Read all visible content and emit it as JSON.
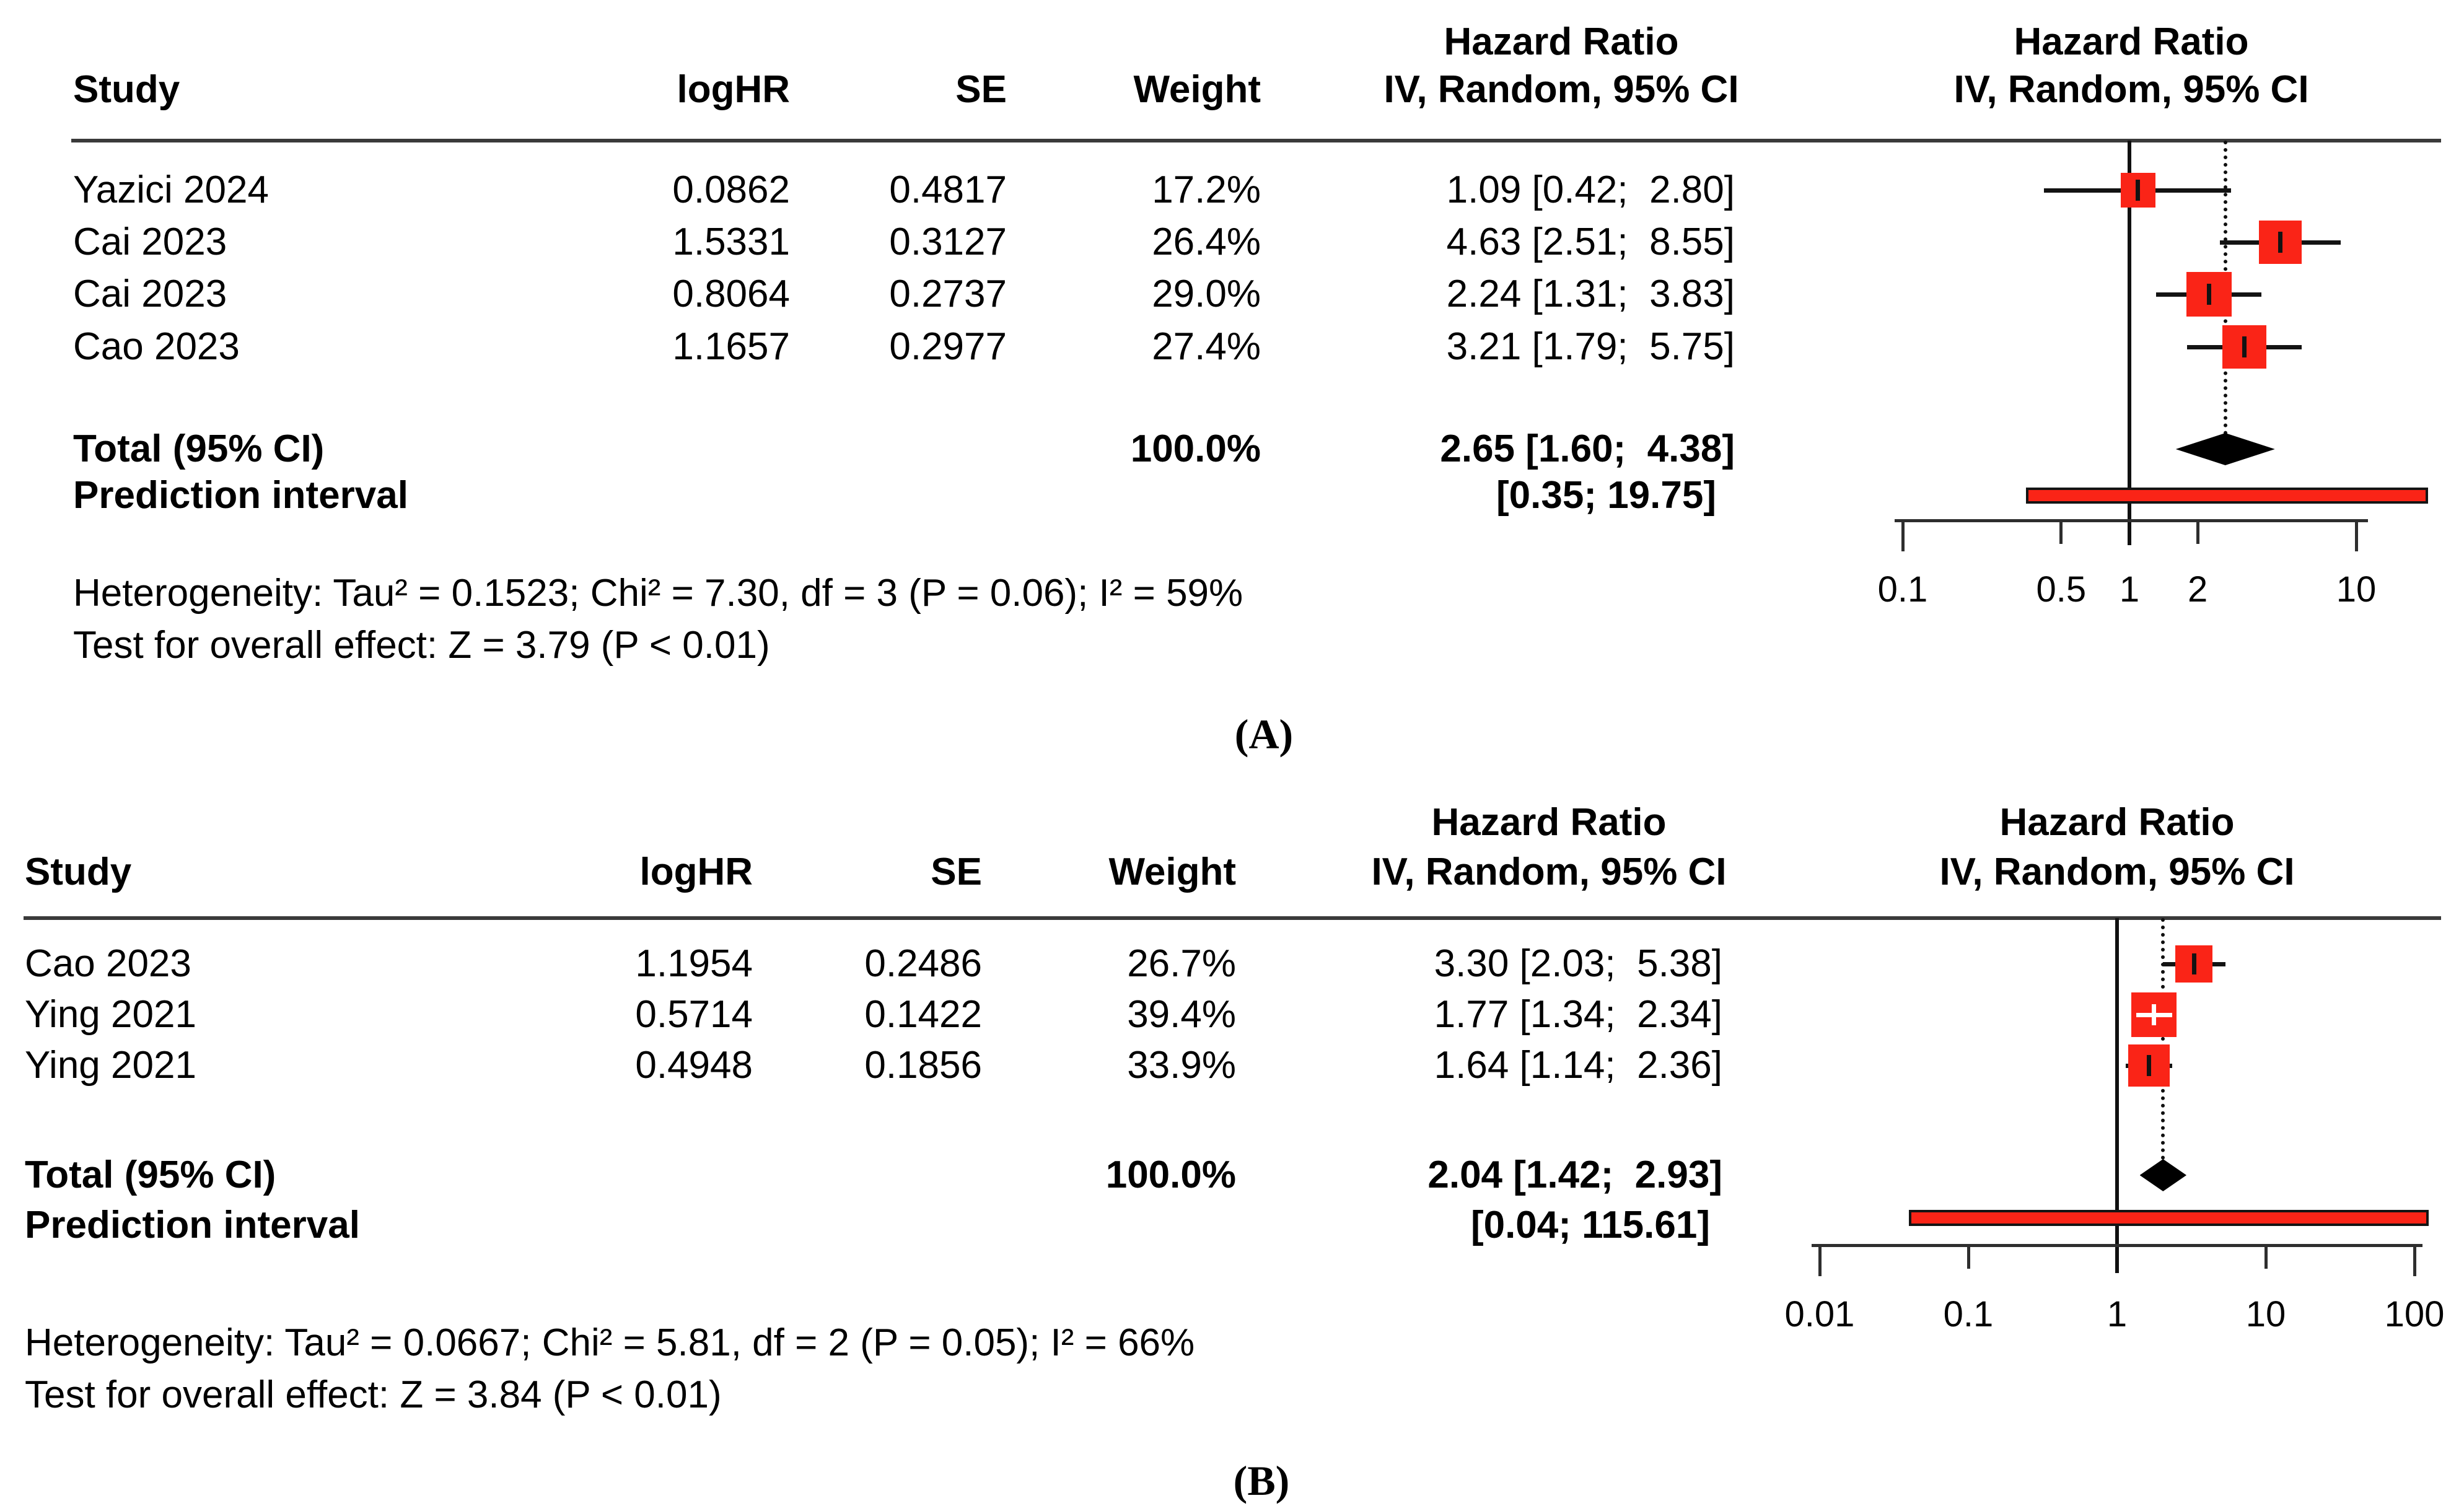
{
  "colors": {
    "marker_red": "#fa2417",
    "line_black": "#101010",
    "rule_gray": "#3a3a3a"
  },
  "chart_data": [
    {
      "type": "forest",
      "panel_label": "(A)",
      "effect_measure": "Hazard Ratio",
      "model": "IV, Random, 95% CI",
      "col_headers": {
        "study": "Study",
        "loghr": "logHR",
        "se": "SE",
        "weight": "Weight",
        "hr_line1": "Hazard Ratio",
        "hr_line2": "IV, Random, 95% CI"
      },
      "plot_headers": {
        "line1": "Hazard Ratio",
        "line2": "IV, Random, 95% CI"
      },
      "studies": [
        {
          "study": "Yazici 2024",
          "loghr": "0.0862",
          "se": "0.4817",
          "weight": "17.2%",
          "weight_pct": 17.2,
          "hr": 1.09,
          "lo": 0.42,
          "hi": 2.8,
          "hr_text": "1.09 [0.42;  2.80]"
        },
        {
          "study": "Cai 2023",
          "loghr": "1.5331",
          "se": "0.3127",
          "weight": "26.4%",
          "weight_pct": 26.4,
          "hr": 4.63,
          "lo": 2.51,
          "hi": 8.55,
          "hr_text": "4.63 [2.51;  8.55]"
        },
        {
          "study": "Cai 2023",
          "loghr": "0.8064",
          "se": "0.2737",
          "weight": "29.0%",
          "weight_pct": 29.0,
          "hr": 2.24,
          "lo": 1.31,
          "hi": 3.83,
          "hr_text": "2.24 [1.31;  3.83]"
        },
        {
          "study": "Cao 2023",
          "loghr": "1.1657",
          "se": "0.2977",
          "weight": "27.4%",
          "weight_pct": 27.4,
          "hr": 3.21,
          "lo": 1.79,
          "hi": 5.75,
          "hr_text": "3.21 [1.79;  5.75]"
        }
      ],
      "total": {
        "label": "Total (95% CI)",
        "weight": "100.0%",
        "hr": 2.65,
        "lo": 1.6,
        "hi": 4.38,
        "hr_text": "2.65 [1.60;  4.38]"
      },
      "prediction": {
        "label": "Prediction interval",
        "lo": 0.35,
        "hi": 19.75,
        "hr_text": "[0.35; 19.75]"
      },
      "heterogeneity": "Heterogeneity: Tau² = 0.1523; Chi² = 7.30, df = 3 (P = 0.06); I² = 59%",
      "overall_effect": "Test for overall effect: Z = 3.79 (P < 0.01)",
      "axis": {
        "scale": "log",
        "ticks": [
          0.1,
          0.5,
          1,
          2,
          10
        ],
        "tick_labels": [
          "0.1",
          "0.5",
          "1",
          "2",
          "10"
        ],
        "ref_line": 1,
        "pooled_line": 2.65
      }
    },
    {
      "type": "forest",
      "panel_label": "(B)",
      "effect_measure": "Hazard Ratio",
      "model": "IV, Random, 95% CI",
      "col_headers": {
        "study": "Study",
        "loghr": "logHR",
        "se": "SE",
        "weight": "Weight",
        "hr_line1": "Hazard Ratio",
        "hr_line2": "IV, Random, 95% CI"
      },
      "plot_headers": {
        "line1": "Hazard Ratio",
        "line2": "IV, Random, 95% CI"
      },
      "studies": [
        {
          "study": "Cao 2023",
          "loghr": "1.1954",
          "se": "0.2486",
          "weight": "26.7%",
          "weight_pct": 26.7,
          "hr": 3.3,
          "lo": 2.03,
          "hi": 5.38,
          "hr_text": "3.30 [2.03;  5.38]"
        },
        {
          "study": "Ying 2021",
          "loghr": "0.5714",
          "se": "0.1422",
          "weight": "39.4%",
          "weight_pct": 39.4,
          "hr": 1.77,
          "lo": 1.34,
          "hi": 2.34,
          "hr_text": "1.77 [1.34;  2.34]"
        },
        {
          "study": "Ying 2021",
          "loghr": "0.4948",
          "se": "0.1856",
          "weight": "33.9%",
          "weight_pct": 33.9,
          "hr": 1.64,
          "lo": 1.14,
          "hi": 2.36,
          "hr_text": "1.64 [1.14;  2.36]"
        }
      ],
      "total": {
        "label": "Total (95% CI)",
        "weight": "100.0%",
        "hr": 2.04,
        "lo": 1.42,
        "hi": 2.93,
        "hr_text": "2.04 [1.42;  2.93]"
      },
      "prediction": {
        "label": "Prediction interval",
        "lo": 0.04,
        "hi": 115.61,
        "hr_text": "[0.04; 115.61]"
      },
      "heterogeneity": "Heterogeneity: Tau² = 0.0667; Chi² = 5.81, df = 2 (P = 0.05); I² = 66%",
      "overall_effect": "Test for overall effect: Z = 3.84 (P < 0.01)",
      "axis": {
        "scale": "log",
        "ticks": [
          0.01,
          0.1,
          1,
          10,
          100
        ],
        "tick_labels": [
          "0.01",
          "0.1",
          "1",
          "10",
          "100"
        ],
        "ref_line": 1,
        "pooled_line": 2.04
      }
    }
  ]
}
